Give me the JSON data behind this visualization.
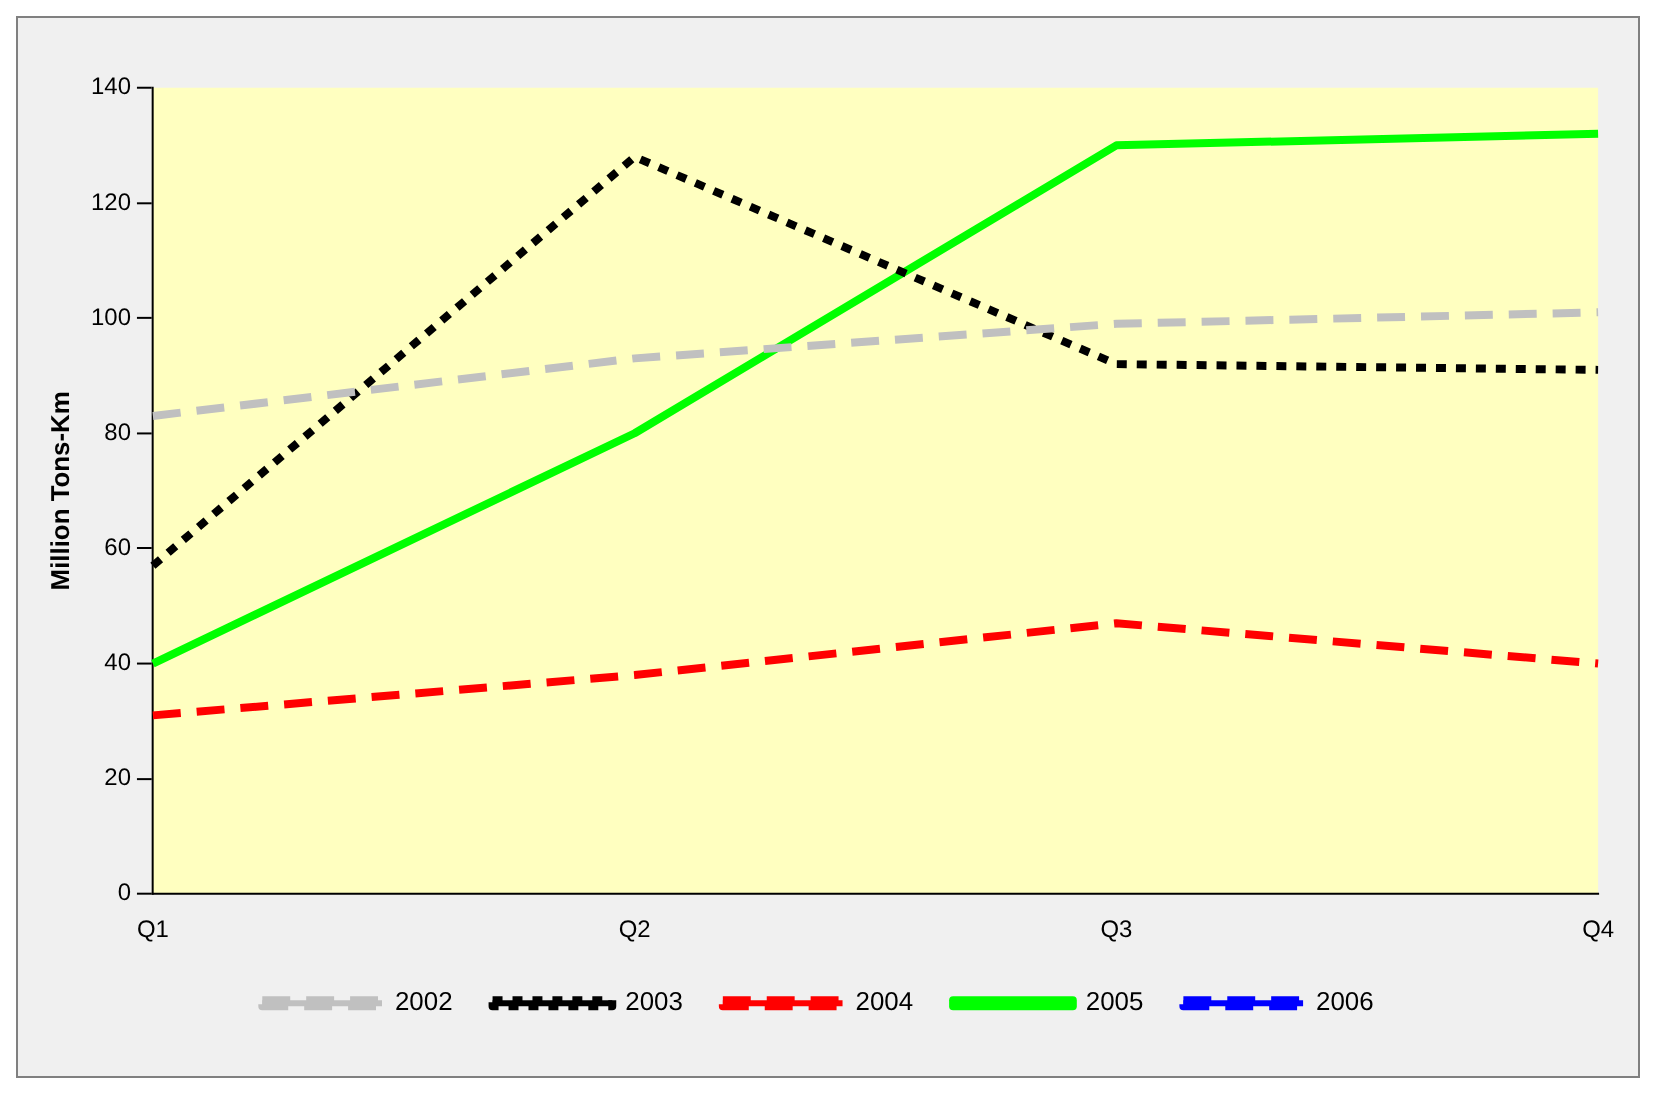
{
  "chart_data": {
    "type": "line",
    "ylabel": "Million Tons-Km",
    "categories": [
      "Q1",
      "Q2",
      "Q3",
      "Q4"
    ],
    "ylim": [
      0,
      140
    ],
    "yticks": [
      0,
      20,
      40,
      60,
      80,
      100,
      120,
      140
    ],
    "grid": false,
    "legend": "bottom",
    "marker": "none",
    "series": [
      {
        "name": "2002",
        "color": "#c0c0c0",
        "line_style": "dashed",
        "values": [
          83,
          93,
          99,
          101
        ]
      },
      {
        "name": "2003",
        "color": "#000000",
        "line_style": "dotted",
        "values": [
          57,
          128,
          92,
          91
        ]
      },
      {
        "name": "2004",
        "color": "#ff0000",
        "line_style": "dashed",
        "values": [
          31,
          38,
          47,
          40
        ]
      },
      {
        "name": "2005",
        "color": "#00ff00",
        "line_style": "solid",
        "values": [
          40,
          80,
          130,
          132
        ]
      },
      {
        "name": "2006",
        "color": "#0000ff",
        "line_style": "dashed",
        "values": [
          null,
          null,
          null,
          null
        ]
      }
    ]
  }
}
